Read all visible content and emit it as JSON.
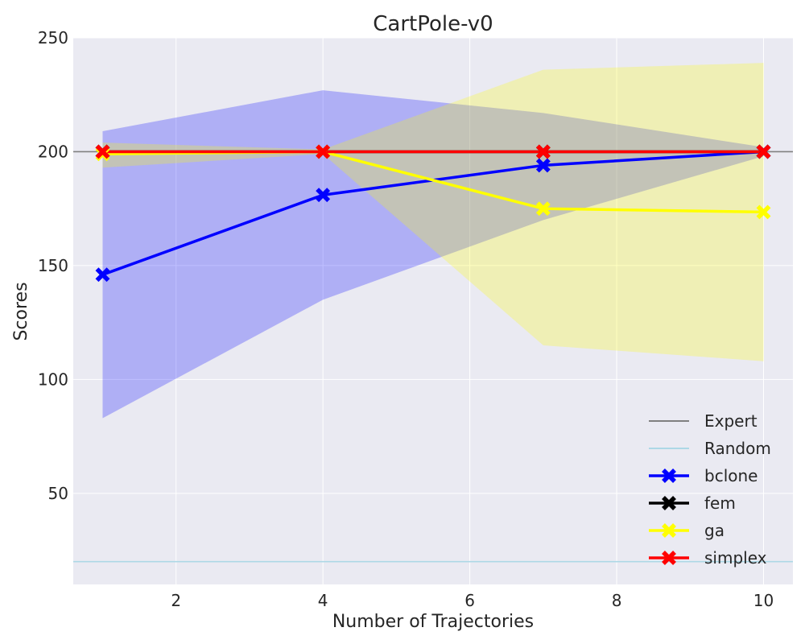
{
  "chart_data": {
    "type": "line",
    "title": "CartPole-v0",
    "xlabel": "Number of Trajectories",
    "ylabel": "Scores",
    "xlim": [
      0.6,
      10.4
    ],
    "ylim": [
      10,
      250
    ],
    "xticks": [
      2,
      4,
      6,
      8,
      10
    ],
    "yticks": [
      50,
      100,
      150,
      200,
      250
    ],
    "grid": true,
    "legend_position": "bottom-right",
    "x": [
      1,
      4,
      7,
      10
    ],
    "reference_lines": [
      {
        "name": "Expert",
        "value": 200,
        "color": "#808080"
      },
      {
        "name": "Random",
        "value": 20,
        "color": "#add8e6"
      }
    ],
    "bands": [
      {
        "series": "bclone",
        "color": "#0000ff",
        "opacity": 0.25,
        "lower": [
          83,
          135,
          170,
          198
        ],
        "upper": [
          209,
          227,
          217,
          202
        ]
      },
      {
        "series": "ga",
        "color": "#ffff00",
        "opacity": 0.25,
        "lower": [
          193,
          199,
          115,
          108
        ],
        "upper": [
          204,
          201,
          236,
          239
        ]
      }
    ],
    "series": [
      {
        "name": "bclone",
        "color": "#0000ff",
        "values": [
          146,
          181,
          194,
          200
        ]
      },
      {
        "name": "fem",
        "color": "#000000",
        "values": [
          200,
          200,
          200,
          200
        ]
      },
      {
        "name": "ga",
        "color": "#ffff00",
        "values": [
          199,
          200,
          175,
          173.5
        ]
      },
      {
        "name": "simplex",
        "color": "#ff0000",
        "values": [
          200,
          200,
          200,
          200
        ]
      }
    ]
  }
}
